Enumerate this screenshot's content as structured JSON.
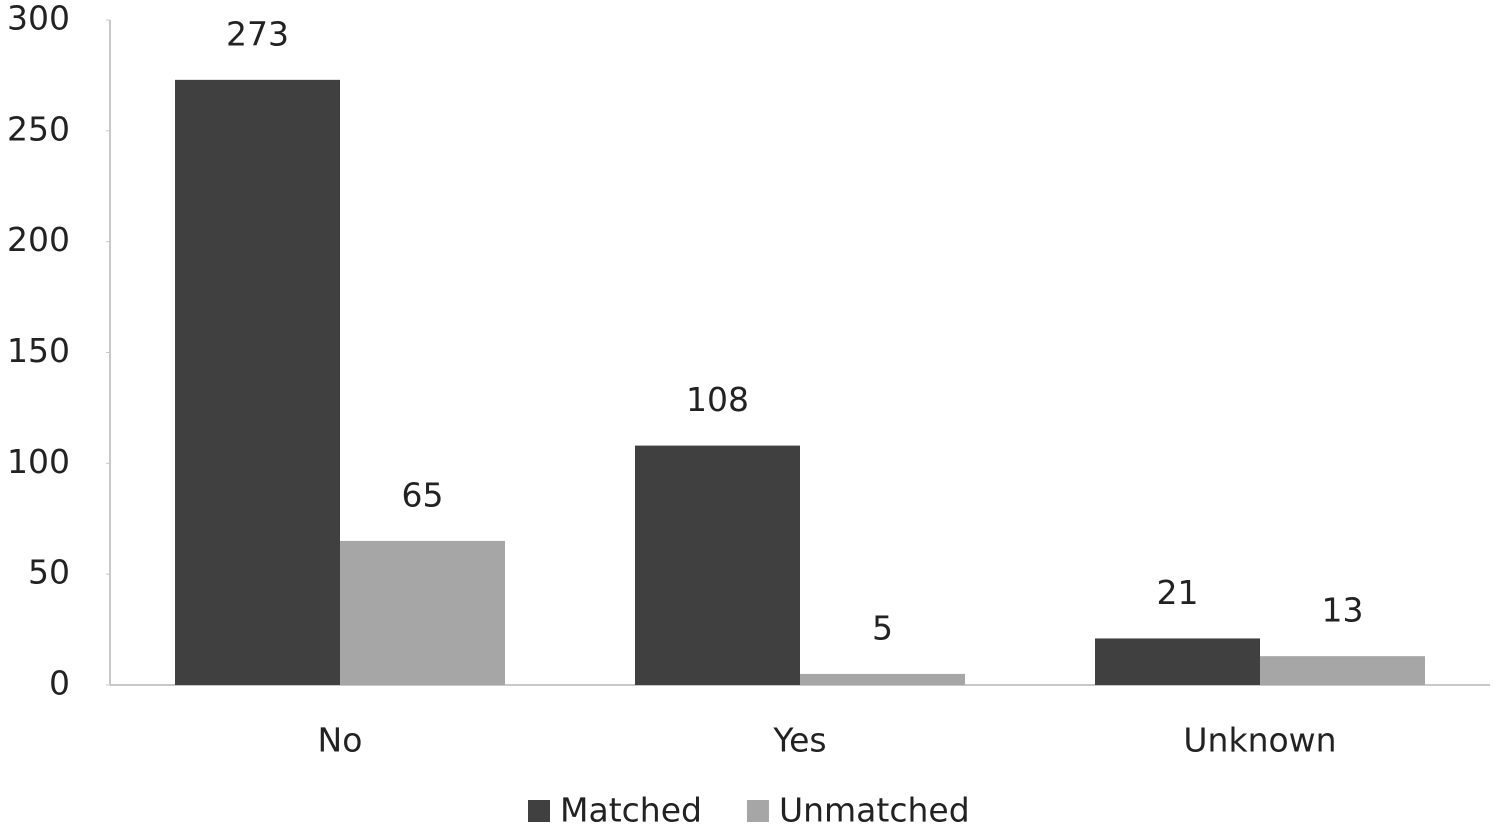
{
  "chart_data": {
    "type": "bar",
    "categories": [
      "No",
      "Yes",
      "Unknown"
    ],
    "series": [
      {
        "name": "Matched",
        "color": "#404040",
        "values": [
          273,
          108,
          21
        ]
      },
      {
        "name": "Unmatched",
        "color": "#a6a6a6",
        "values": [
          65,
          5,
          13
        ]
      }
    ],
    "ylim": [
      0,
      300
    ],
    "yticks": [
      0,
      50,
      100,
      150,
      200,
      250,
      300
    ],
    "grid": false,
    "legend": "bottom"
  }
}
